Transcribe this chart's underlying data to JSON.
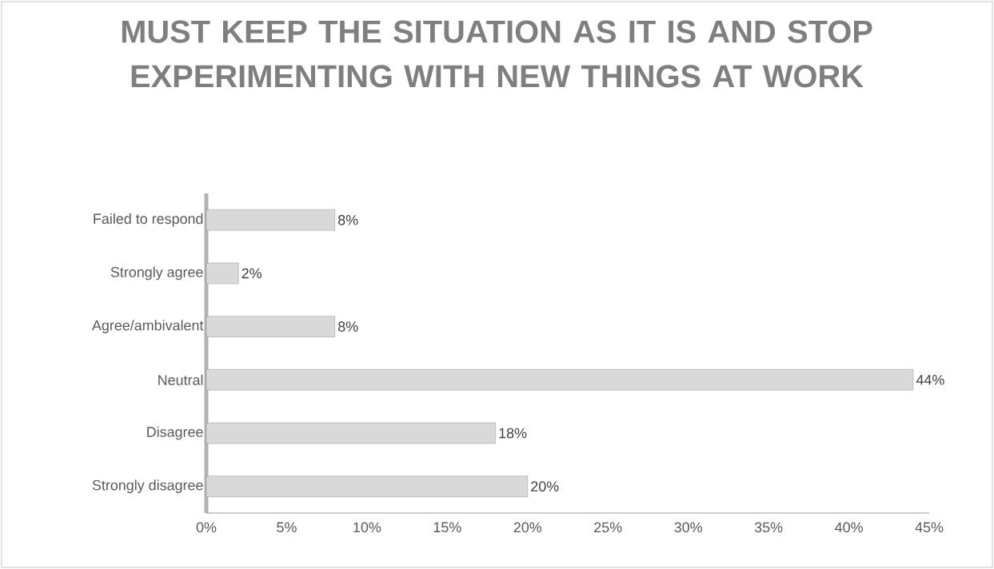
{
  "chart_data": {
    "type": "bar",
    "orientation": "horizontal",
    "title": "MUST KEEP THE SITUATION AS IT IS AND STOP EXPERIMENTING WITH NEW THINGS AT WORK",
    "categories": [
      "Failed to respond",
      "Strongly agree",
      "Agree/ambivalent",
      "Neutral",
      "Disagree",
      "Strongly disagree"
    ],
    "values": [
      8,
      2,
      8,
      44,
      18,
      20
    ],
    "value_labels": [
      "8%",
      "2%",
      "8%",
      "44%",
      "18%",
      "20%"
    ],
    "color": "#d9d9d9",
    "xlim": [
      0,
      45
    ],
    "xticks": [
      {
        "value": 0,
        "label": "0%"
      },
      {
        "value": 5,
        "label": "5%"
      },
      {
        "value": 10,
        "label": "10%"
      },
      {
        "value": 15,
        "label": "15%"
      },
      {
        "value": 20,
        "label": "20%"
      },
      {
        "value": 25,
        "label": "25%"
      },
      {
        "value": 30,
        "label": "30%"
      },
      {
        "value": 35,
        "label": "35%"
      },
      {
        "value": 40,
        "label": "40%"
      },
      {
        "value": 45,
        "label": "45%"
      }
    ]
  }
}
